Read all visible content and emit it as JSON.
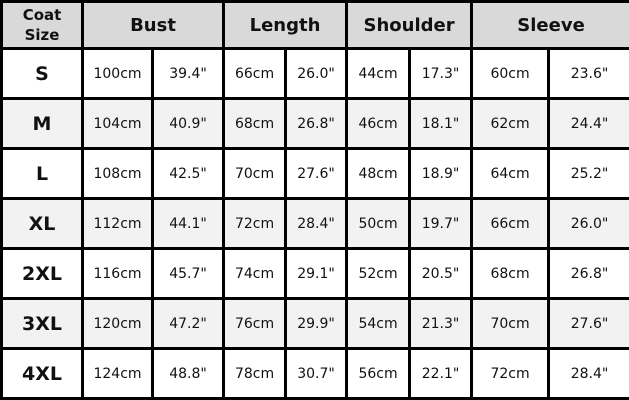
{
  "headers": {
    "size_line1": "Coat",
    "size_line2": "Size",
    "bust": "Bust",
    "length": "Length",
    "shoulder": "Shoulder",
    "sleeve": "Sleeve"
  },
  "colors": {
    "header_bg": "#d9d9d9",
    "alt_row_bg": "#f2f2f2",
    "border": "#000000"
  },
  "rows": [
    {
      "size": "S",
      "cells": [
        "100cm",
        "39.4\"",
        "66cm",
        "26.0\"",
        "44cm",
        "17.3\"",
        "60cm",
        "23.6\""
      ]
    },
    {
      "size": "M",
      "cells": [
        "104cm",
        "40.9\"",
        "68cm",
        "26.8\"",
        "46cm",
        "18.1\"",
        "62cm",
        "24.4\""
      ]
    },
    {
      "size": "L",
      "cells": [
        "108cm",
        "42.5\"",
        "70cm",
        "27.6\"",
        "48cm",
        "18.9\"",
        "64cm",
        "25.2\""
      ]
    },
    {
      "size": "XL",
      "cells": [
        "112cm",
        "44.1\"",
        "72cm",
        "28.4\"",
        "50cm",
        "19.7\"",
        "66cm",
        "26.0\""
      ]
    },
    {
      "size": "2XL",
      "cells": [
        "116cm",
        "45.7\"",
        "74cm",
        "29.1\"",
        "52cm",
        "20.5\"",
        "68cm",
        "26.8\""
      ]
    },
    {
      "size": "3XL",
      "cells": [
        "120cm",
        "47.2\"",
        "76cm",
        "29.9\"",
        "54cm",
        "21.3\"",
        "70cm",
        "27.6\""
      ]
    },
    {
      "size": "4XL",
      "cells": [
        "124cm",
        "48.8\"",
        "78cm",
        "30.7\"",
        "56cm",
        "22.1\"",
        "72cm",
        "28.4\""
      ]
    }
  ]
}
